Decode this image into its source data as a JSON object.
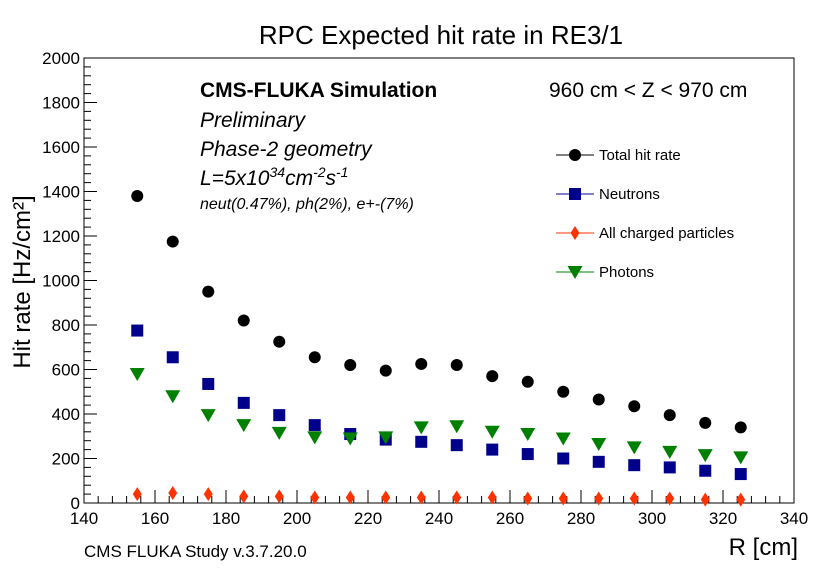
{
  "chart_data": {
    "type": "scatter",
    "title": "RPC Expected hit rate in RE3/1",
    "xlabel": "R [cm]",
    "ylabel": "Hit rate [Hz/cm²]",
    "xlim": [
      140,
      340
    ],
    "ylim": [
      0,
      2000
    ],
    "xticks": [
      "140",
      "160",
      "180",
      "200",
      "220",
      "240",
      "260",
      "280",
      "300",
      "320",
      "340"
    ],
    "yticks": [
      "0",
      "200",
      "400",
      "600",
      "800",
      "1000",
      "1200",
      "1400",
      "1600",
      "1800",
      "2000"
    ],
    "grid": false,
    "legend_position": "top-right",
    "annotations": {
      "sim": "CMS-FLUKA Simulation",
      "prelim": "Preliminary",
      "geom": "Phase-2 geometry",
      "lumi_base": "L=5x10",
      "lumi_exp1": "34",
      "lumi_unit": "cm",
      "lumi_exp2": "-2",
      "lumi_s": "s",
      "lumi_exp3": "-1",
      "frac": "neut(0.47%), ph(2%), e+-(7%)",
      "zrange": "960 cm < Z < 970 cm",
      "footer": "CMS FLUKA Study v.3.7.20.0"
    },
    "x": [
      155,
      165,
      175,
      185,
      195,
      205,
      215,
      225,
      235,
      245,
      255,
      265,
      275,
      285,
      295,
      305,
      315,
      325
    ],
    "series": [
      {
        "name": "Total hit rate",
        "marker": "circle",
        "color": "#000000",
        "values": [
          1380,
          1175,
          950,
          820,
          725,
          655,
          620,
          595,
          625,
          620,
          570,
          545,
          500,
          465,
          435,
          395,
          360,
          340
        ]
      },
      {
        "name": "Neutrons",
        "marker": "square",
        "color": "#00008b",
        "values": [
          775,
          655,
          535,
          450,
          395,
          350,
          310,
          285,
          275,
          260,
          240,
          220,
          200,
          185,
          170,
          160,
          145,
          130
        ]
      },
      {
        "name": "All charged particles",
        "marker": "diamond",
        "color": "#ff3300",
        "values": [
          40,
          45,
          40,
          30,
          30,
          25,
          25,
          25,
          25,
          25,
          25,
          20,
          20,
          20,
          20,
          20,
          15,
          15
        ]
      },
      {
        "name": "Photons",
        "marker": "triangle-down",
        "color": "#008000",
        "values": [
          580,
          480,
          395,
          350,
          315,
          295,
          290,
          295,
          340,
          345,
          320,
          310,
          290,
          265,
          250,
          230,
          215,
          205
        ]
      }
    ]
  }
}
